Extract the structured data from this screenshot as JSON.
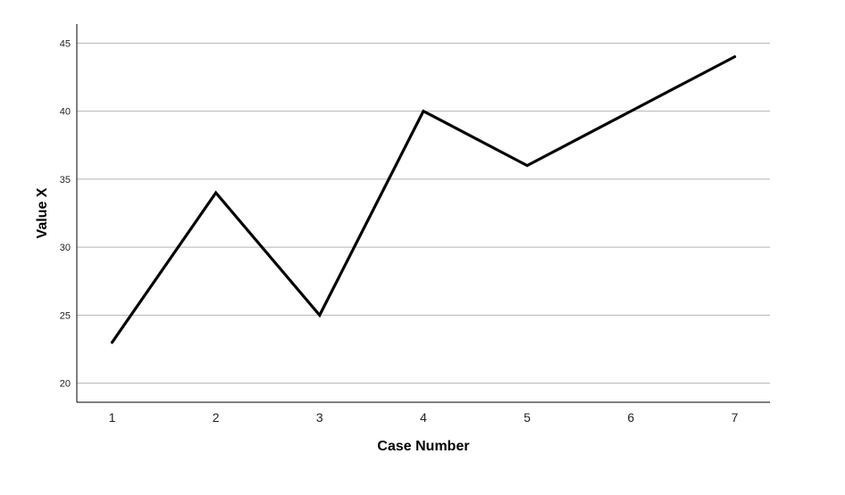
{
  "chart_data": {
    "type": "line",
    "xlabel": "Case Number",
    "ylabel": "Value X",
    "x": [
      1,
      2,
      3,
      4,
      5,
      6,
      7
    ],
    "series": [
      {
        "values": [
          23,
          34,
          25,
          40,
          36,
          40,
          44
        ]
      }
    ],
    "xlim": [
      0.66,
      7.34
    ],
    "ylim": [
      18.6,
      46.4
    ],
    "yticks": [
      20,
      25,
      30,
      35,
      40,
      45
    ],
    "xticks": [
      1,
      2,
      3,
      4,
      5,
      6,
      7
    ],
    "grid": "horizontal",
    "line_color": "#000000",
    "grid_color": "#b4b4b4"
  }
}
